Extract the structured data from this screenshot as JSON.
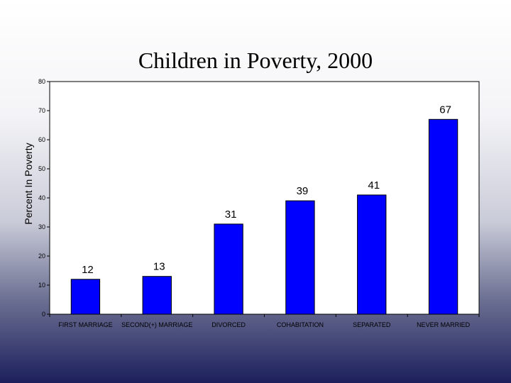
{
  "chart_data": {
    "type": "bar",
    "title": "Children in Poverty, 2000",
    "xlabel": "",
    "ylabel": "Percent In Poverty",
    "ylim": [
      0,
      80
    ],
    "yticks": [
      0,
      10,
      20,
      30,
      40,
      50,
      60,
      70,
      80
    ],
    "categories": [
      "FIRST MARRIAGE",
      "SECOND(+) MARRIAGE",
      "DIVORCED",
      "COHABITATION",
      "SEPARATED",
      "NEVER MARRIED"
    ],
    "values": [
      12,
      13,
      31,
      39,
      41,
      67
    ],
    "bar_color": "#0000ff",
    "grid": false,
    "legend": "none"
  }
}
